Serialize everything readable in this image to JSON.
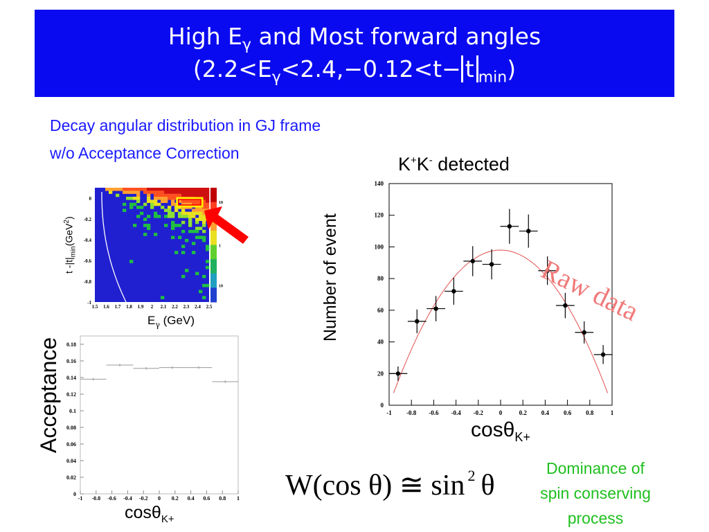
{
  "slide": {
    "title_line1_pre": "High E",
    "title_line1_sub": "γ",
    "title_line1_post": " and Most forward angles",
    "title_line2_a": "(2.2<E",
    "title_line2_sub1": "γ",
    "title_line2_b": "<2.4,−0.12<t−",
    "title_line2_t": "t",
    "title_line2_sub2": "min",
    "title_line2_c": ")",
    "subtitle1": "Decay angular distribution in GJ frame",
    "subtitle2": "w/o Acceptance Correction",
    "raw_data": "Raw data",
    "formula_lhs": "W(cos θ) ≅ sin",
    "formula_exp": "2",
    "formula_rhs": "θ",
    "note_lines": [
      "Dominance of",
      "spin conserving",
      "process"
    ],
    "colors": {
      "banner": "#0a0af0",
      "subtitle": "#1a1aff",
      "note": "#1fbf1f",
      "raw_data": "#f07a7a",
      "arrow": "#ff0000"
    }
  },
  "chart_data": [
    {
      "type": "scatter",
      "title_pre": "K",
      "title_sup1": "+",
      "title_mid": "K",
      "title_sup2": "-",
      "title_post": " detected",
      "ylabel": "Number of event",
      "xlabel_main": "cosθ",
      "xlabel_sub": "K+",
      "xlim": [
        -1,
        1
      ],
      "ylim": [
        0,
        140
      ],
      "xticks": [
        -1,
        -0.8,
        -0.6,
        -0.4,
        -0.2,
        0,
        0.2,
        0.4,
        0.6,
        0.8,
        1
      ],
      "xtick_labels": [
        "-1",
        "-0.8",
        "-0.6",
        "-0.4",
        "-0.2",
        "0",
        "0.2",
        "0.4",
        "0.6",
        "0.8",
        "1"
      ],
      "yticks": [
        0,
        20,
        40,
        60,
        80,
        100,
        120,
        140
      ],
      "ytick_labels": [
        "0",
        "20",
        "40",
        "60",
        "80",
        "100",
        "120",
        "140"
      ],
      "points": [
        {
          "x": -0.92,
          "y": 20,
          "yerr": 4.5
        },
        {
          "x": -0.75,
          "y": 53,
          "yerr": 7.5
        },
        {
          "x": -0.58,
          "y": 61,
          "yerr": 8
        },
        {
          "x": -0.42,
          "y": 72,
          "yerr": 8.5
        },
        {
          "x": -0.25,
          "y": 91,
          "yerr": 9.5
        },
        {
          "x": -0.08,
          "y": 89,
          "yerr": 9.5
        },
        {
          "x": 0.08,
          "y": 113,
          "yerr": 11
        },
        {
          "x": 0.25,
          "y": 110,
          "yerr": 10.5
        },
        {
          "x": 0.42,
          "y": 85,
          "yerr": 9
        },
        {
          "x": 0.58,
          "y": 63,
          "yerr": 8
        },
        {
          "x": 0.75,
          "y": 46,
          "yerr": 7
        },
        {
          "x": 0.92,
          "y": 32,
          "yerr": 6
        }
      ],
      "xerr": 0.083,
      "fit": {
        "form": "A(1-x^2)",
        "A": 98,
        "color": "#e05050"
      }
    },
    {
      "type": "bar",
      "ylabel": "Acceptance",
      "xlabel_main": "cosθ",
      "xlabel_sub": "K+",
      "xlim": [
        -1,
        1
      ],
      "ylim": [
        0,
        0.19
      ],
      "xticks": [
        -1,
        -0.8,
        -0.6,
        -0.4,
        -0.2,
        0,
        0.2,
        0.4,
        0.6,
        0.8,
        1
      ],
      "xtick_labels": [
        "-1",
        "-0.8",
        "-0.6",
        "-0.4",
        "-0.2",
        "0",
        "0.2",
        "0.4",
        "0.6",
        "0.8",
        "1"
      ],
      "yticks": [
        0,
        0.02,
        0.04,
        0.06,
        0.08,
        0.1,
        0.12,
        0.14,
        0.16,
        0.18
      ],
      "ytick_labels": [
        "0",
        "0.02",
        "0.04",
        "0.06",
        "0.08",
        "0.1",
        "0.12",
        "0.14",
        "0.16",
        "0.18"
      ],
      "bins": [
        {
          "x0": -1.0,
          "x1": -0.67,
          "y": 0.138
        },
        {
          "x0": -0.67,
          "x1": -0.33,
          "y": 0.155
        },
        {
          "x0": -0.33,
          "x1": 0.0,
          "y": 0.151
        },
        {
          "x0": 0.0,
          "x1": 0.33,
          "y": 0.152
        },
        {
          "x0": 0.33,
          "x1": 0.67,
          "y": 0.152
        },
        {
          "x0": 0.67,
          "x1": 1.0,
          "y": 0.135
        }
      ]
    },
    {
      "type": "heatmap",
      "ylabel_pre": "t -|t|",
      "ylabel_sub": "min",
      "ylabel_post": "(GeV",
      "ylabel_sup": "2",
      "ylabel_end": ")",
      "xlabel_main": "E",
      "xlabel_sub": "γ",
      "xlabel_post": " (GeV)",
      "xlim": [
        1.5,
        2.5
      ],
      "ylim": [
        -1,
        0.1
      ],
      "xtick_labels": [
        "1.5",
        "1.6",
        "1.7",
        "1.8",
        "1.9",
        "2",
        "2.1",
        "2.2",
        "2.3",
        "2.4",
        "2.5"
      ],
      "ytick_values": [
        0,
        -0.2,
        -0.4,
        -0.6,
        -0.8,
        -1
      ],
      "ytick_labels": [
        "0",
        "-0.2",
        "-0.4",
        "-0.6",
        "-0.8",
        "-1"
      ],
      "colorbar_labels": [
        "10",
        "1",
        "10"
      ],
      "highlight_box": {
        "x0": 2.22,
        "x1": 2.44,
        "y0": -0.08,
        "y1": 0.0
      }
    }
  ]
}
